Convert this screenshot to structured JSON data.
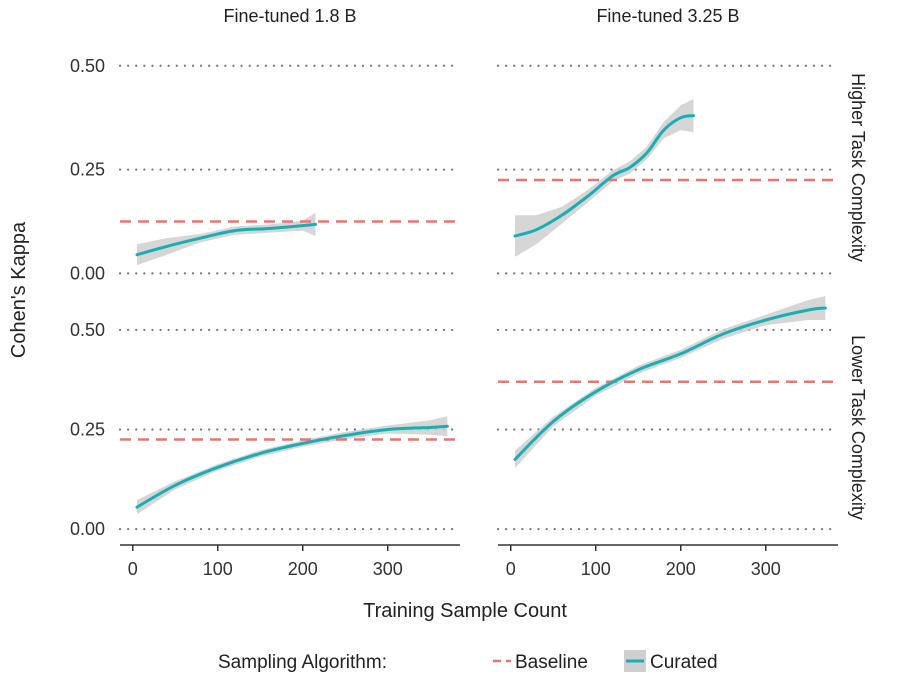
{
  "chart_data": {
    "type": "line",
    "facet_columns": [
      "Fine-tuned 1.8 B",
      "Fine-tuned 3.25 B"
    ],
    "facet_rows": [
      "Higher Task Complexity",
      "Lower Task Complexity"
    ],
    "xlabel": "Training Sample Count",
    "ylabel": "Cohen's Kappa",
    "x_ticks": [
      0,
      100,
      200,
      300
    ],
    "y_ticks": [
      0.0,
      0.25,
      0.5
    ],
    "y_tick_labels": [
      "0.00",
      "0.25",
      "0.50"
    ],
    "xlim": [
      -15,
      385
    ],
    "grid": "horizontal dotted at y ticks",
    "legend": {
      "title": "Sampling Algorithm:",
      "position": "bottom",
      "entries": [
        {
          "name": "Baseline",
          "style": "dashed",
          "color": "#e8776b"
        },
        {
          "name": "Curated",
          "style": "solid with confidence band",
          "color": "#1aadb4"
        }
      ]
    },
    "colors": {
      "baseline": "#e8776b",
      "curated": "#1aadb4",
      "band": "#cfcfcf",
      "grid": "#777777"
    },
    "panels": [
      {
        "column": "Fine-tuned 1.8 B",
        "row": "Higher Task Complexity",
        "ylim": [
          -0.04,
          0.55
        ],
        "baseline": 0.125,
        "curated": {
          "x": [
            5,
            40,
            80,
            120,
            160,
            200,
            215
          ],
          "y": [
            0.045,
            0.065,
            0.085,
            0.103,
            0.108,
            0.115,
            0.118
          ],
          "band": [
            0.025,
            0.02,
            0.01,
            0.01,
            0.01,
            0.012,
            0.028
          ]
        }
      },
      {
        "column": "Fine-tuned 3.25 B",
        "row": "Higher Task Complexity",
        "ylim": [
          -0.04,
          0.55
        ],
        "baseline": 0.225,
        "curated": {
          "x": [
            5,
            30,
            60,
            90,
            120,
            140,
            160,
            180,
            200,
            215
          ],
          "y": [
            0.09,
            0.105,
            0.14,
            0.185,
            0.235,
            0.255,
            0.29,
            0.345,
            0.375,
            0.38
          ],
          "band": [
            0.05,
            0.035,
            0.02,
            0.015,
            0.013,
            0.015,
            0.015,
            0.02,
            0.03,
            0.04
          ]
        }
      },
      {
        "column": "Fine-tuned 1.8 B",
        "row": "Lower Task Complexity",
        "ylim": [
          -0.04,
          0.55
        ],
        "baseline": 0.225,
        "curated": {
          "x": [
            5,
            50,
            100,
            150,
            200,
            250,
            300,
            350,
            370
          ],
          "y": [
            0.055,
            0.11,
            0.155,
            0.19,
            0.215,
            0.235,
            0.25,
            0.255,
            0.258
          ],
          "band": [
            0.018,
            0.01,
            0.008,
            0.008,
            0.008,
            0.009,
            0.01,
            0.018,
            0.025
          ]
        }
      },
      {
        "column": "Fine-tuned 3.25 B",
        "row": "Lower Task Complexity",
        "ylim": [
          -0.04,
          0.55
        ],
        "baseline": 0.37,
        "curated": {
          "x": [
            5,
            50,
            100,
            150,
            200,
            250,
            300,
            350,
            370
          ],
          "y": [
            0.175,
            0.27,
            0.345,
            0.4,
            0.44,
            0.49,
            0.525,
            0.55,
            0.555
          ],
          "band": [
            0.022,
            0.012,
            0.01,
            0.01,
            0.01,
            0.012,
            0.013,
            0.025,
            0.03
          ]
        }
      }
    ]
  }
}
